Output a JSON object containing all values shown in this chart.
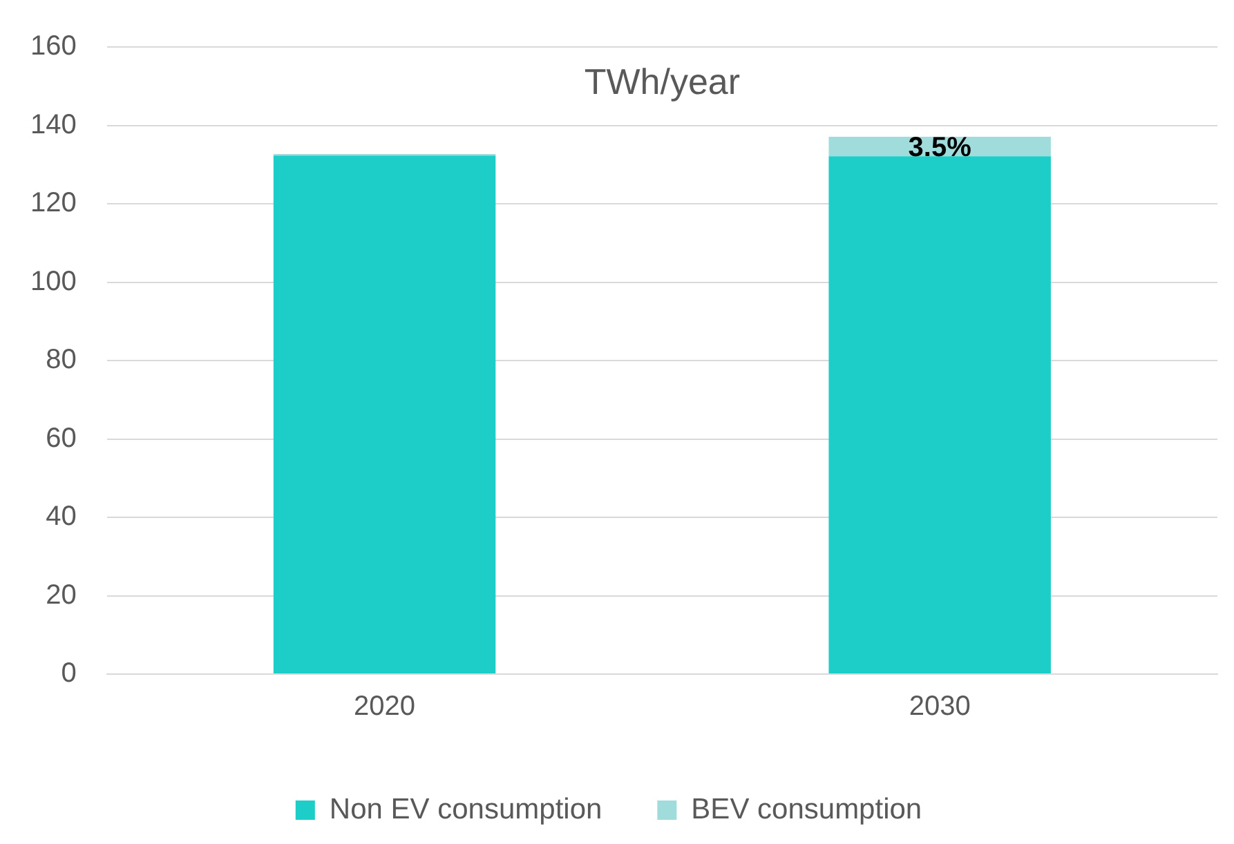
{
  "chart_data": {
    "type": "bar",
    "title": "TWh/year",
    "categories": [
      "2020",
      "2030"
    ],
    "stacked": true,
    "series": [
      {
        "name": "Non EV consumption",
        "color": "#1ccdc8",
        "values": [
          132.3,
          132.1
        ]
      },
      {
        "name": "BEV consumption",
        "color": "#a0dcdc",
        "values": [
          0.4,
          5
        ]
      }
    ],
    "ylim": [
      0,
      160
    ],
    "yticks": [
      0,
      20,
      40,
      60,
      80,
      100,
      120,
      140,
      160
    ],
    "grid": "y",
    "legend": "bottom",
    "annotations": [
      {
        "text": "3.5%",
        "x": "2030",
        "y": 137
      }
    ]
  }
}
